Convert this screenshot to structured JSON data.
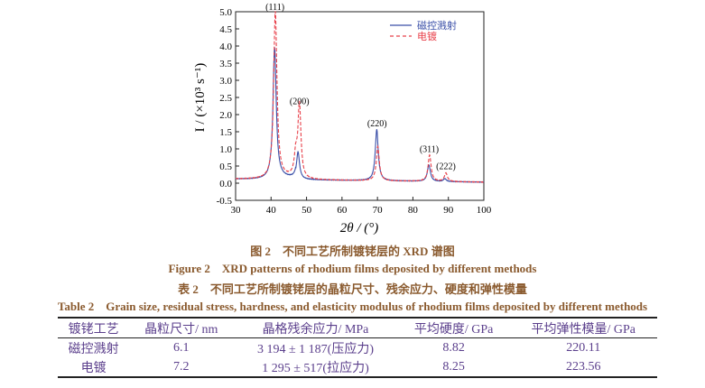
{
  "chart_data": {
    "type": "line",
    "xlabel": "2θ / (°)",
    "ylabel": "I / (×10³ s⁻¹)",
    "xlim": [
      30,
      100
    ],
    "ylim": [
      -0.5,
      5.0
    ],
    "xticks": [
      30,
      40,
      50,
      60,
      70,
      80,
      90,
      100
    ],
    "yticks": [
      -0.5,
      0.0,
      0.5,
      1.0,
      1.5,
      2.0,
      2.5,
      3.0,
      3.5,
      4.0,
      4.5,
      5.0
    ],
    "grid": false,
    "legend_position": "top-right",
    "annotations": [
      {
        "text": "(111)",
        "x": 41.1,
        "y": 5.0
      },
      {
        "text": "(200)",
        "x": 48.0,
        "y": 2.25
      },
      {
        "text": "(220)",
        "x": 69.9,
        "y": 1.6
      },
      {
        "text": "(311)",
        "x": 84.6,
        "y": 0.85
      },
      {
        "text": "(222)",
        "x": 89.3,
        "y": 0.35
      }
    ],
    "series": [
      {
        "name": "磁控溅射",
        "color": "#3a4fa8",
        "style": "solid",
        "peaks": [
          {
            "two_theta": 41.0,
            "intensity": 3.85
          },
          {
            "two_theta": 47.6,
            "intensity": 0.8
          },
          {
            "two_theta": 69.8,
            "intensity": 1.5
          },
          {
            "two_theta": 84.5,
            "intensity": 0.48
          },
          {
            "two_theta": 89.0,
            "intensity": 0.08
          }
        ]
      },
      {
        "name": "电镀",
        "color": "#e8404a",
        "style": "dashed",
        "peaks": [
          {
            "two_theta": 41.2,
            "intensity": 4.9
          },
          {
            "two_theta": 47.0,
            "intensity": 0.62
          },
          {
            "two_theta": 48.0,
            "intensity": 2.15
          },
          {
            "two_theta": 70.1,
            "intensity": 1.0
          },
          {
            "two_theta": 84.7,
            "intensity": 0.77
          },
          {
            "two_theta": 89.3,
            "intensity": 0.25
          }
        ]
      }
    ]
  },
  "figure_caption_cn": "图 2　不同工艺所制镀铑层的 XRD 谱图",
  "figure_caption_en": "Figure 2　XRD patterns of rhodium films deposited by different methods",
  "table_caption_cn": "表 2　不同工艺所制镀铑层的晶粒尺寸、残余应力、硬度和弹性模量",
  "table_caption_en": "Table 2　Grain size, residual stress, hardness, and elasticity modulus of rhodium films deposited by different methods",
  "table": {
    "headers": [
      "镀铑工艺",
      "晶粒尺寸/ nm",
      "晶格残余应力/ MPa",
      "平均硬度/ GPa",
      "平均弹性模量/ GPa"
    ],
    "rows": [
      [
        "磁控溅射",
        "6.1",
        "3 194 ± 1 187(压应力)",
        "8.82",
        "220.11"
      ],
      [
        "电镀",
        "7.2",
        "1 295 ± 517(拉应力)",
        "8.25",
        "223.56"
      ]
    ]
  }
}
